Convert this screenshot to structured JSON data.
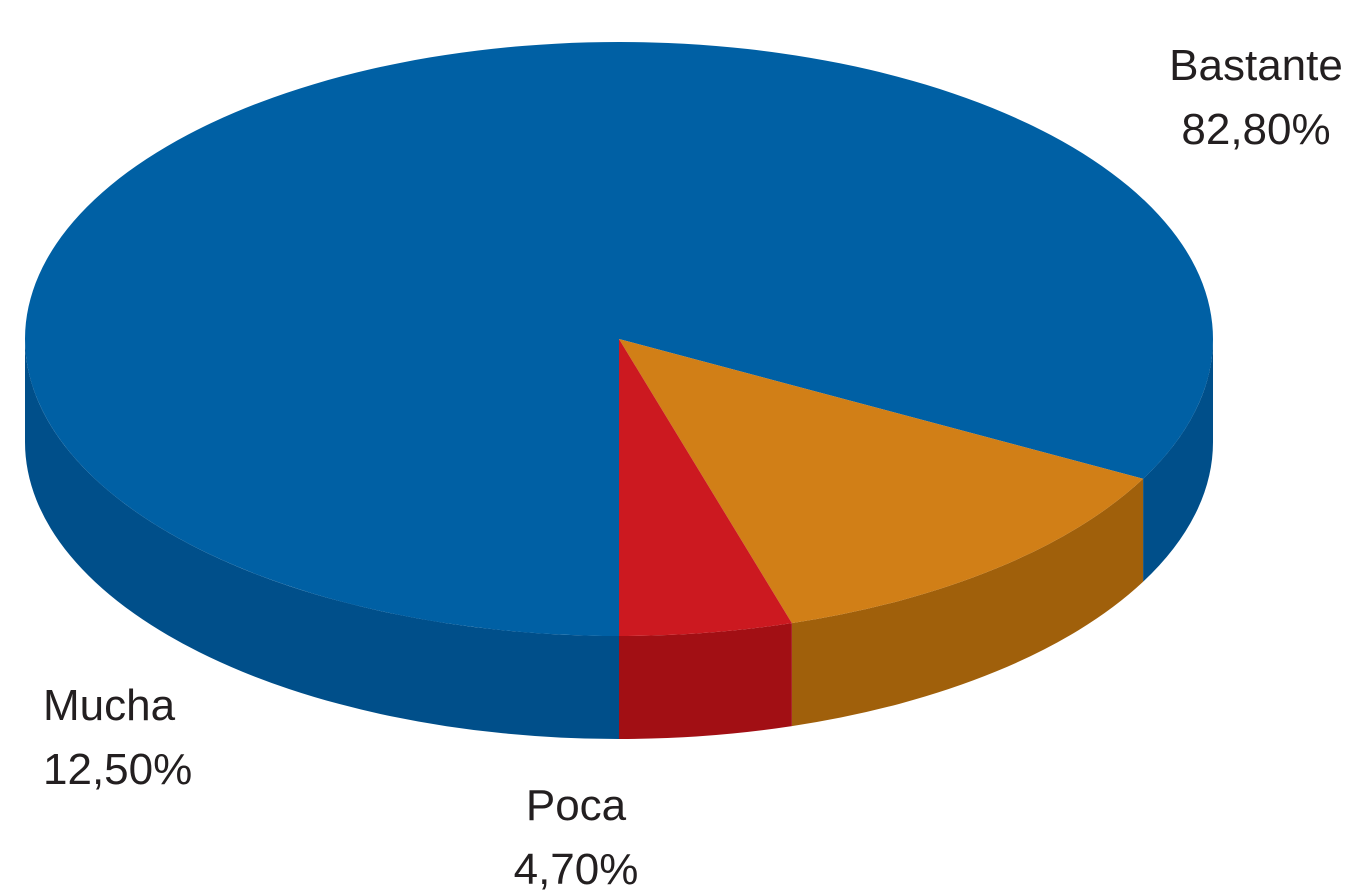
{
  "chart_data": {
    "type": "pie",
    "style": "3d",
    "legend": "none",
    "slices": [
      {
        "name": "Bastante",
        "value": 82.8,
        "value_label": "82,80%",
        "color": "#0060a4",
        "side_color": "#004f8a"
      },
      {
        "name": "Mucha",
        "value": 12.5,
        "value_label": "12,50%",
        "color": "#d17f17",
        "side_color": "#a0600b"
      },
      {
        "name": "Poca",
        "value": 4.7,
        "value_label": "4,70%",
        "color": "#cc1920",
        "side_color": "#a20f14"
      }
    ]
  }
}
